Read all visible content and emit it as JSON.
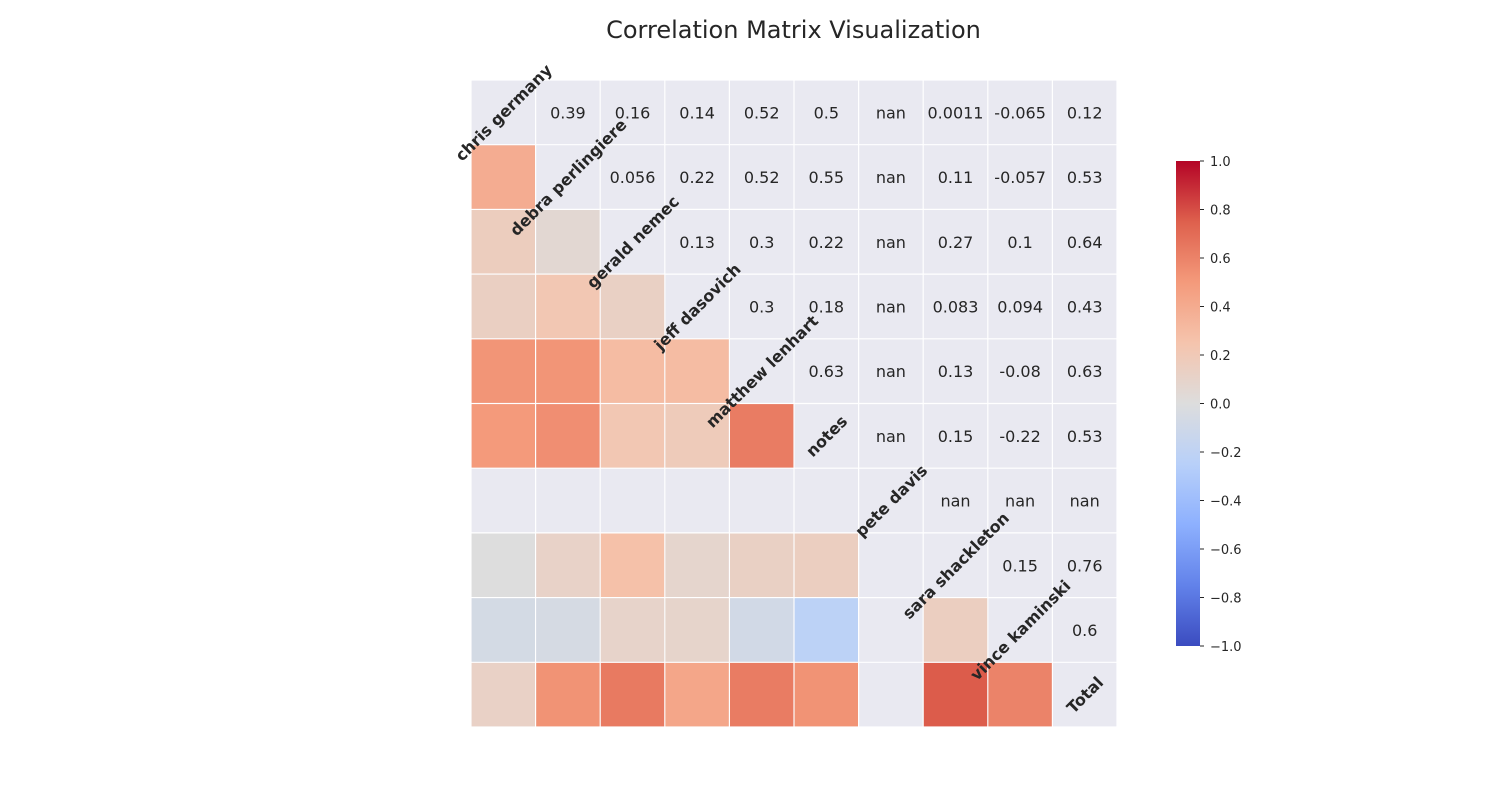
{
  "chart_data": {
    "type": "heatmap",
    "title": "Correlation Matrix Visualization",
    "labels": [
      "chris germany",
      "debra perlingiere",
      "gerald nemec",
      "jeff dasovich",
      "matthew lenhart",
      "notes",
      "pete davis",
      "sara shackleton",
      "vince kaminski",
      "Total"
    ],
    "colormap": "coolwarm",
    "vmin": -1.0,
    "vmax": 1.0,
    "grid": true,
    "legend": "colorbar right",
    "upper_triangle_annotations": [
      [
        "",
        "0.39",
        "0.16",
        "0.14",
        "0.52",
        "0.5",
        "nan",
        "0.0011",
        "-0.065",
        "0.12"
      ],
      [
        "",
        "",
        "0.056",
        "0.22",
        "0.52",
        "0.55",
        "nan",
        "0.11",
        "-0.057",
        "0.53"
      ],
      [
        "",
        "",
        "",
        "0.13",
        "0.3",
        "0.22",
        "nan",
        "0.27",
        "0.1",
        "0.64"
      ],
      [
        "",
        "",
        "",
        "",
        "0.3",
        "0.18",
        "nan",
        "0.083",
        "0.094",
        "0.43"
      ],
      [
        "",
        "",
        "",
        "",
        "",
        "0.63",
        "nan",
        "0.13",
        "-0.08",
        "0.63"
      ],
      [
        "",
        "",
        "",
        "",
        "",
        "",
        "nan",
        "0.15",
        "-0.22",
        "0.53"
      ],
      [
        "",
        "",
        "",
        "",
        "",
        "",
        "",
        "nan",
        "nan",
        "nan"
      ],
      [
        "",
        "",
        "",
        "",
        "",
        "",
        "",
        "",
        "0.15",
        "0.76"
      ],
      [
        "",
        "",
        "",
        "",
        "",
        "",
        "",
        "",
        "",
        "0.6"
      ],
      [
        "",
        "",
        "",
        "",
        "",
        "",
        "",
        "",
        "",
        ""
      ]
    ],
    "lower_triangle_values": [
      [],
      [
        0.39
      ],
      [
        0.16,
        0.056
      ],
      [
        0.14,
        0.22,
        0.13
      ],
      [
        0.52,
        0.52,
        0.3,
        0.3
      ],
      [
        0.5,
        0.55,
        0.22,
        0.18,
        0.63
      ],
      [
        null,
        null,
        null,
        null,
        null,
        null
      ],
      [
        0.0011,
        0.11,
        0.27,
        0.083,
        0.13,
        0.15,
        null
      ],
      [
        -0.065,
        -0.057,
        0.1,
        0.094,
        -0.08,
        -0.22,
        null,
        0.15
      ],
      [
        0.12,
        0.53,
        0.64,
        0.43,
        0.63,
        0.53,
        null,
        0.76,
        0.6
      ]
    ],
    "colorbar_ticks": [
      "1.0",
      "0.8",
      "0.6",
      "0.4",
      "0.2",
      "0.0",
      "−0.2",
      "−0.4",
      "−0.6",
      "−0.8",
      "−1.0"
    ],
    "colorbar_tick_values": [
      1.0,
      0.8,
      0.6,
      0.4,
      0.2,
      0.0,
      -0.2,
      -0.4,
      -0.6,
      -0.8,
      -1.0
    ],
    "colors": {
      "background": "#e9e9f1",
      "grid": "#ffffff",
      "text": "#262626"
    }
  }
}
